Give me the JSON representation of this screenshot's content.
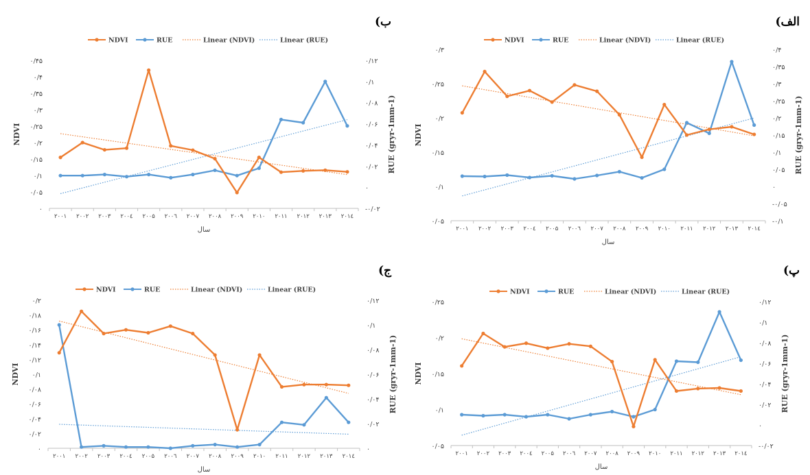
{
  "colors": {
    "ndvi": "#ED7D31",
    "rue": "#5B9BD5",
    "axis": "#BFBFBF",
    "text": "#404040"
  },
  "chart_data": [
    {
      "type": "line",
      "title": "(الف",
      "xlabel": "سال",
      "ylabel_left": "NDVI",
      "ylabel_right": "RUE (gryr-1mm-1)",
      "legend": [
        "NDVI",
        "RUE",
        "Linear (NDVI)",
        "Linear (RUE)"
      ],
      "legend_position": "top",
      "categories": [
        "۲۰۰۱",
        "۲۰۰۲",
        "۲۰۰۳",
        "۲۰۰٤",
        "۲۰۰۵",
        "۲۰۰٦",
        "۲۰۰۷",
        "۲۰۰۸",
        "۲۰۰۹",
        "۲۰۱۰",
        "۲۰۱۱",
        "۲۰۱۲",
        "۲۰۱۳",
        "۲۰۱٤"
      ],
      "left_ticks": [
        "۰/۰۵",
        "۰/۱",
        "۰/۱۵",
        "۰/۲",
        "۰/۲۵",
        "۰/۳"
      ],
      "left_ylim": [
        0.03,
        0.3
      ],
      "right_ticks": [
        "-۰/۱",
        "-۰/۰۵",
        "۰",
        "۰/۰۵",
        "۰/۱",
        "۰/۱۵",
        "۰/۲",
        "۰/۲۵",
        "۰/۳",
        "۰/۳۵",
        "۰/۴"
      ],
      "right_ylim": [
        -0.1,
        0.4
      ],
      "series": [
        {
          "name": "NDVI",
          "axis": "left",
          "values": [
            0.2,
            0.265,
            0.226,
            0.235,
            0.217,
            0.244,
            0.234,
            0.197,
            0.13,
            0.213,
            0.165,
            0.174,
            0.178,
            0.166
          ]
        },
        {
          "name": "RUE",
          "axis": "right",
          "values": [
            0.03,
            0.029,
            0.033,
            0.026,
            0.031,
            0.022,
            0.032,
            0.043,
            0.025,
            0.05,
            0.186,
            0.155,
            0.364,
            0.179
          ]
        }
      ],
      "trendlines": [
        {
          "name": "Linear (NDVI)",
          "of": "NDVI"
        },
        {
          "name": "Linear (RUE)",
          "of": "RUE"
        }
      ]
    },
    {
      "type": "line",
      "title": "(ب",
      "xlabel": "سال",
      "ylabel_left": "NDVI",
      "ylabel_right": "RUE (gryr-1mm-1)",
      "legend": [
        "NDVI",
        "RUE",
        "Linear (NDVI)",
        "Linear (RUE)"
      ],
      "legend_position": "top",
      "categories": [
        "۲۰۰۱",
        "۲۰۰۲",
        "۲۰۰۳",
        "۲۰۰٤",
        "۲۰۰۵",
        "۲۰۰٦",
        "۲۰۰۷",
        "۲۰۰۸",
        "۲۰۰۹",
        "۲۰۱۰",
        "۲۰۱۱",
        "۲۰۱۲",
        "۲۰۱۳",
        "۲۰۱٤"
      ],
      "left_ticks": [
        "۰",
        "۰/۰۵",
        "۰/۱",
        "۰/۱۵",
        "۰/۲",
        "۰/۲۵",
        "۰/۳",
        "۰/۳۵",
        "۰/۴",
        "۰/۴۵"
      ],
      "left_ylim": [
        0,
        0.45
      ],
      "right_ticks": [
        "-۰/۰۲",
        "۰",
        "۰/۰۲",
        "۰/۰۴",
        "۰/۰۶",
        "۰/۰۸",
        "۰/۱",
        "۰/۱۲"
      ],
      "right_ylim": [
        -0.02,
        0.12
      ],
      "series": [
        {
          "name": "NDVI",
          "axis": "left",
          "values": [
            0.155,
            0.2,
            0.178,
            0.183,
            0.42,
            0.19,
            0.177,
            0.151,
            0.048,
            0.155,
            0.11,
            0.114,
            0.116,
            0.111
          ]
        },
        {
          "name": "RUE",
          "axis": "right",
          "values": [
            0.011,
            0.011,
            0.012,
            0.01,
            0.012,
            0.009,
            0.012,
            0.016,
            0.011,
            0.018,
            0.064,
            0.061,
            0.1,
            0.058
          ]
        }
      ],
      "trendlines": [
        {
          "name": "Linear (NDVI)",
          "of": "NDVI"
        },
        {
          "name": "Linear (RUE)",
          "of": "RUE"
        }
      ]
    },
    {
      "type": "line",
      "title": "(پ",
      "xlabel": "سال",
      "ylabel_left": "NDVI",
      "ylabel_right": "RUE (gryr-1mm-1)",
      "legend": [
        "NDVI",
        "RUE",
        "Linear (NDVI)",
        "Linear (RUE)"
      ],
      "legend_position": "top",
      "categories": [
        "۲۰۰۱",
        "۲۰۰۲",
        "۲۰۰۳",
        "۲۰۰٤",
        "۲۰۰۵",
        "۲۰۰٦",
        "۲۰۰۷",
        "۲۰۰۸",
        "۲۰۰۹",
        "۲۰۱۰",
        "۲۰۱۱",
        "۲۰۱۲",
        "۲۰۱۳",
        "۲۰۱٤"
      ],
      "left_ticks": [
        "۰/۰۵",
        "۰/۱",
        "۰/۱۵",
        "۰/۲",
        "۰/۲۵"
      ],
      "left_ylim": [
        0.015,
        0.25
      ],
      "right_ticks": [
        "-۰/۰۲",
        "۰",
        "۰/۰۲",
        "۰/۰۴",
        "۰/۰۶",
        "۰/۰۸",
        "۰/۱",
        "۰/۱۲"
      ],
      "right_ylim": [
        -0.02,
        0.12
      ],
      "series": [
        {
          "name": "NDVI",
          "axis": "left",
          "values": [
            0.145,
            0.198,
            0.176,
            0.182,
            0.174,
            0.181,
            0.177,
            0.152,
            0.046,
            0.155,
            0.104,
            0.108,
            0.109,
            0.104
          ]
        },
        {
          "name": "RUE",
          "axis": "right",
          "values": [
            0.01,
            0.009,
            0.01,
            0.008,
            0.01,
            0.006,
            0.01,
            0.013,
            0.008,
            0.015,
            0.062,
            0.061,
            0.11,
            0.063
          ]
        }
      ],
      "trendlines": [
        {
          "name": "Linear (NDVI)",
          "of": "NDVI"
        },
        {
          "name": "Linear (RUE)",
          "of": "RUE"
        }
      ]
    },
    {
      "type": "line",
      "title": "(ج",
      "xlabel": "سال",
      "ylabel_left": "NDVI",
      "ylabel_right": "RUE (gryr-1mm-1)",
      "legend": [
        "NDVI",
        "RUE",
        "Linear (NDVI)",
        "Linear (RUE)"
      ],
      "legend_position": "top",
      "categories": [
        "۲۰۰۱",
        "۲۰۰۲",
        "۲۰۰۳",
        "۲۰۰٤",
        "۲۰۰۵",
        "۲۰۰٦",
        "۲۰۰۷",
        "۲۰۰۸",
        "۲۰۰۹",
        "۲۰۱۰",
        "۲۰۱۱",
        "۲۰۱۲",
        "۲۰۱۳",
        "۲۰۱٤"
      ],
      "left_ticks": [
        "۰",
        "۰/۰۲",
        "۰/۰۴",
        "۰/۰۶",
        "۰/۰۸",
        "۰/۱",
        "۰/۱۲",
        "۰/۱۴",
        "۰/۱۶",
        "۰/۱۸",
        "۰/۲"
      ],
      "left_ylim": [
        0,
        0.2
      ],
      "right_ticks": [
        "۰",
        "۰/۰۲",
        "۰/۰۴",
        "۰/۰۶",
        "۰/۰۸",
        "۰/۱",
        "۰/۱۲"
      ],
      "right_ylim": [
        0,
        0.12
      ],
      "series": [
        {
          "name": "NDVI",
          "axis": "left",
          "values": [
            0.129,
            0.185,
            0.155,
            0.16,
            0.156,
            0.165,
            0.155,
            0.126,
            0.025,
            0.126,
            0.083,
            0.086,
            0.086,
            0.085
          ]
        },
        {
          "name": "RUE",
          "axis": "right",
          "values": [
            0.1,
            0.001,
            0.002,
            0.001,
            0.001,
            0.0,
            0.002,
            0.003,
            0.001,
            0.003,
            0.021,
            0.019,
            0.041,
            0.021
          ]
        }
      ],
      "trendlines": [
        {
          "name": "Linear (NDVI)",
          "of": "NDVI"
        },
        {
          "name": "Linear (RUE)",
          "of": "RUE"
        }
      ]
    }
  ]
}
